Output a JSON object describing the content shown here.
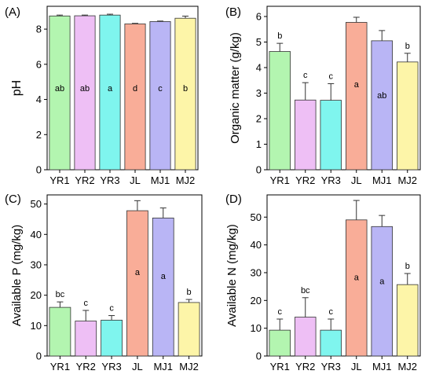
{
  "colors": [
    "#b3f5b0",
    "#eebff5",
    "#7ff5ee",
    "#f9ad98",
    "#b9b5f5",
    "#fdf5a8"
  ],
  "chart_data": [
    {
      "type": "bar",
      "panel_label": "(A)",
      "ylabel": "pH",
      "categories": [
        "YR1",
        "YR2",
        "YR3",
        "JL",
        "MJ1",
        "MJ2"
      ],
      "values": [
        8.75,
        8.76,
        8.8,
        8.3,
        8.43,
        8.62
      ],
      "errors": [
        0.05,
        0.04,
        0.05,
        0.03,
        0.03,
        0.12
      ],
      "letters": [
        "ab",
        "ab",
        "a",
        "d",
        "c",
        "b"
      ],
      "letter_position": "middle",
      "ylim": [
        0,
        9.3
      ],
      "yticks": [
        0,
        2,
        4,
        6,
        8
      ]
    },
    {
      "type": "bar",
      "panel_label": "(B)",
      "ylabel": "Organic matter (g/kg)",
      "categories": [
        "YR1",
        "YR2",
        "YR3",
        "JL",
        "MJ1",
        "MJ2"
      ],
      "values": [
        4.63,
        2.73,
        2.72,
        5.77,
        5.05,
        4.22
      ],
      "errors": [
        0.32,
        0.68,
        0.65,
        0.2,
        0.4,
        0.34
      ],
      "letters": [
        "b",
        "c",
        "c",
        "a",
        "ab",
        "b"
      ],
      "letter_position": "mixed",
      "ylim": [
        0,
        6.4
      ],
      "yticks": [
        0,
        1,
        2,
        3,
        4,
        5,
        6
      ]
    },
    {
      "type": "bar",
      "panel_label": "(C)",
      "ylabel": "Available P (mg/kg)",
      "categories": [
        "YR1",
        "YR2",
        "YR3",
        "JL",
        "MJ1",
        "MJ2"
      ],
      "values": [
        16,
        11.5,
        11.8,
        47.8,
        45.4,
        17.6
      ],
      "errors": [
        1.8,
        3.5,
        1.5,
        3.3,
        3.3,
        1.0
      ],
      "letters": [
        "bc",
        "c",
        "c",
        "a",
        "a",
        "b"
      ],
      "letter_position": "mixed",
      "ylim": [
        0,
        53
      ],
      "yticks": [
        0,
        10,
        20,
        30,
        40,
        50
      ]
    },
    {
      "type": "bar",
      "panel_label": "(D)",
      "ylabel": "Available N (mg/kg)",
      "categories": [
        "YR1",
        "YR2",
        "YR3",
        "JL",
        "MJ1",
        "MJ2"
      ],
      "values": [
        9.3,
        14,
        9.3,
        49,
        46.6,
        25.7
      ],
      "errors": [
        4,
        7,
        4,
        7,
        4,
        4
      ],
      "letters": [
        "c",
        "bc",
        "c",
        "a",
        "a",
        "b"
      ],
      "letter_position": "mixed",
      "ylim": [
        0,
        58
      ],
      "yticks": [
        0,
        10,
        20,
        30,
        40,
        50
      ]
    }
  ]
}
